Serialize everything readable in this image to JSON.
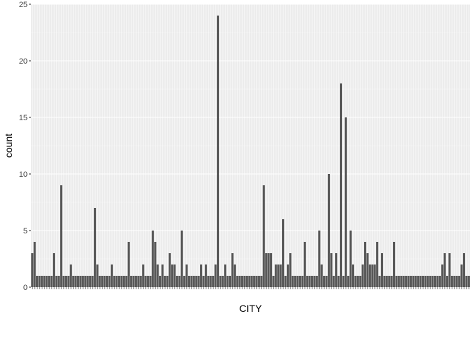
{
  "chart_data": {
    "type": "bar",
    "title": "",
    "xlabel": "CITY",
    "ylabel": "count",
    "ylim": [
      0,
      25
    ],
    "yticks": [
      0,
      5,
      10,
      15,
      20,
      25
    ],
    "grid": true,
    "legend": "none",
    "values": [
      3,
      4,
      1,
      1,
      1,
      1,
      1,
      1,
      1,
      3,
      1,
      1,
      9,
      1,
      1,
      1,
      2,
      1,
      1,
      1,
      1,
      1,
      1,
      1,
      1,
      1,
      7,
      2,
      1,
      1,
      1,
      1,
      1,
      2,
      1,
      1,
      1,
      1,
      1,
      1,
      4,
      1,
      1,
      1,
      1,
      1,
      2,
      1,
      1,
      1,
      5,
      4,
      2,
      1,
      2,
      1,
      1,
      3,
      2,
      2,
      1,
      1,
      5,
      1,
      2,
      1,
      1,
      1,
      1,
      1,
      2,
      1,
      2,
      1,
      1,
      1,
      2,
      24,
      1,
      1,
      2,
      1,
      1,
      3,
      2,
      1,
      1,
      1,
      1,
      1,
      1,
      1,
      1,
      1,
      1,
      1,
      9,
      3,
      3,
      3,
      1,
      2,
      2,
      2,
      6,
      1,
      2,
      3,
      1,
      1,
      1,
      1,
      1,
      4,
      1,
      1,
      1,
      1,
      1,
      5,
      2,
      1,
      1,
      10,
      3,
      1,
      3,
      1,
      18,
      1,
      15,
      1,
      5,
      2,
      1,
      1,
      1,
      2,
      4,
      3,
      2,
      2,
      2,
      4,
      1,
      3,
      1,
      1,
      1,
      1,
      4,
      1,
      1,
      1,
      1,
      1,
      1,
      1,
      1,
      1,
      1,
      1,
      1,
      1,
      1,
      1,
      1,
      1,
      1,
      1,
      2,
      3,
      1,
      3,
      1,
      1,
      1,
      1,
      2,
      3,
      1,
      1
    ]
  },
  "colors": {
    "panel": "#ebebeb",
    "grid_major": "#ffffff",
    "grid_minor": "#f5f5f5",
    "bar": "#595959",
    "axis_text": "#4d4d4d",
    "axis_title": "#000000"
  }
}
